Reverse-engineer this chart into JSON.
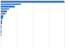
{
  "values": [
    695000,
    220000,
    150000,
    95000,
    65000,
    50000,
    30000,
    22000,
    16000,
    13000,
    10000,
    8000,
    6500,
    5500,
    4500,
    3800,
    3200,
    2700,
    2200,
    1800
  ],
  "bar_color": "#3d7cc9",
  "background_color": "#ffffff",
  "grid_color": "#cccccc",
  "n_bars": 20,
  "bar_height": 0.75
}
